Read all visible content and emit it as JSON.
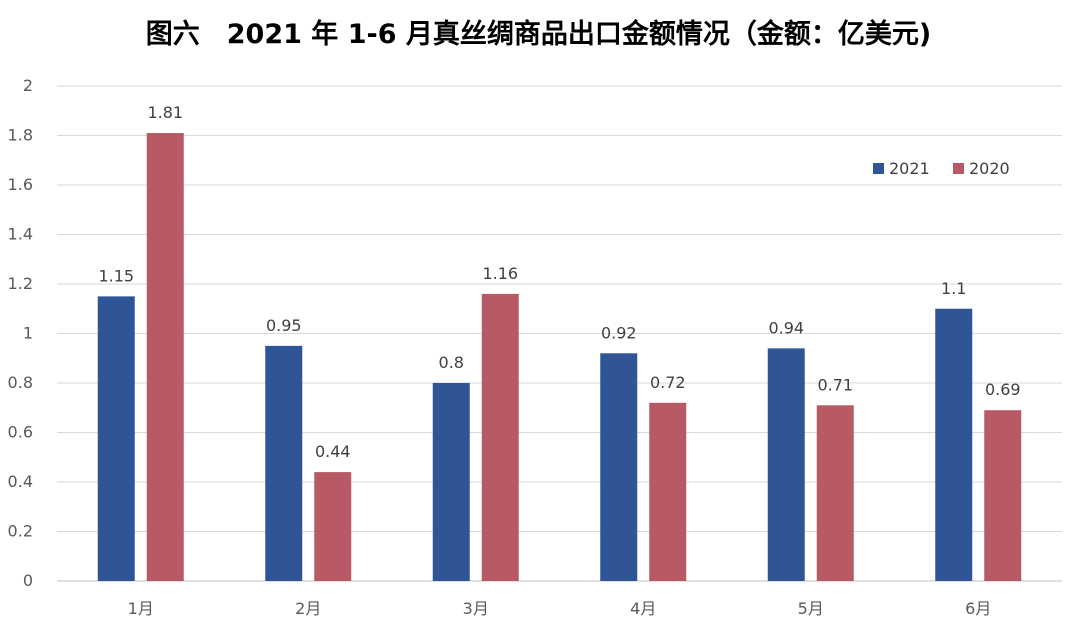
{
  "title": "图六　2021 年 1-6 月真丝绸商品出口金额情况（金额：亿美元)",
  "colors": {
    "series_2021": "#2F5597",
    "series_2020": "#B85A65",
    "grid": "#D9D9D9",
    "axis": "#BFBFBF",
    "text": "#404040"
  },
  "chart_data": {
    "type": "bar",
    "categories": [
      "1月",
      "2月",
      "3月",
      "4月",
      "5月",
      "6月"
    ],
    "series": [
      {
        "name": "2021",
        "values": [
          1.15,
          0.95,
          0.8,
          0.92,
          0.94,
          1.1
        ]
      },
      {
        "name": "2020",
        "values": [
          1.81,
          0.44,
          1.16,
          0.72,
          0.71,
          0.69
        ]
      }
    ],
    "data_labels": [
      [
        "1.15",
        "0.95",
        "0.8",
        "0.92",
        "0.94",
        "1.1"
      ],
      [
        "1.81",
        "0.44",
        "1.16",
        "0.72",
        "0.71",
        "0.69"
      ]
    ],
    "y_ticks": [
      "0",
      "0.2",
      "0.4",
      "0.6",
      "0.8",
      "1",
      "1.2",
      "1.4",
      "1.6",
      "1.8",
      "2"
    ],
    "ylim": [
      0,
      2
    ],
    "grid": true,
    "legend_position": "top-right"
  }
}
